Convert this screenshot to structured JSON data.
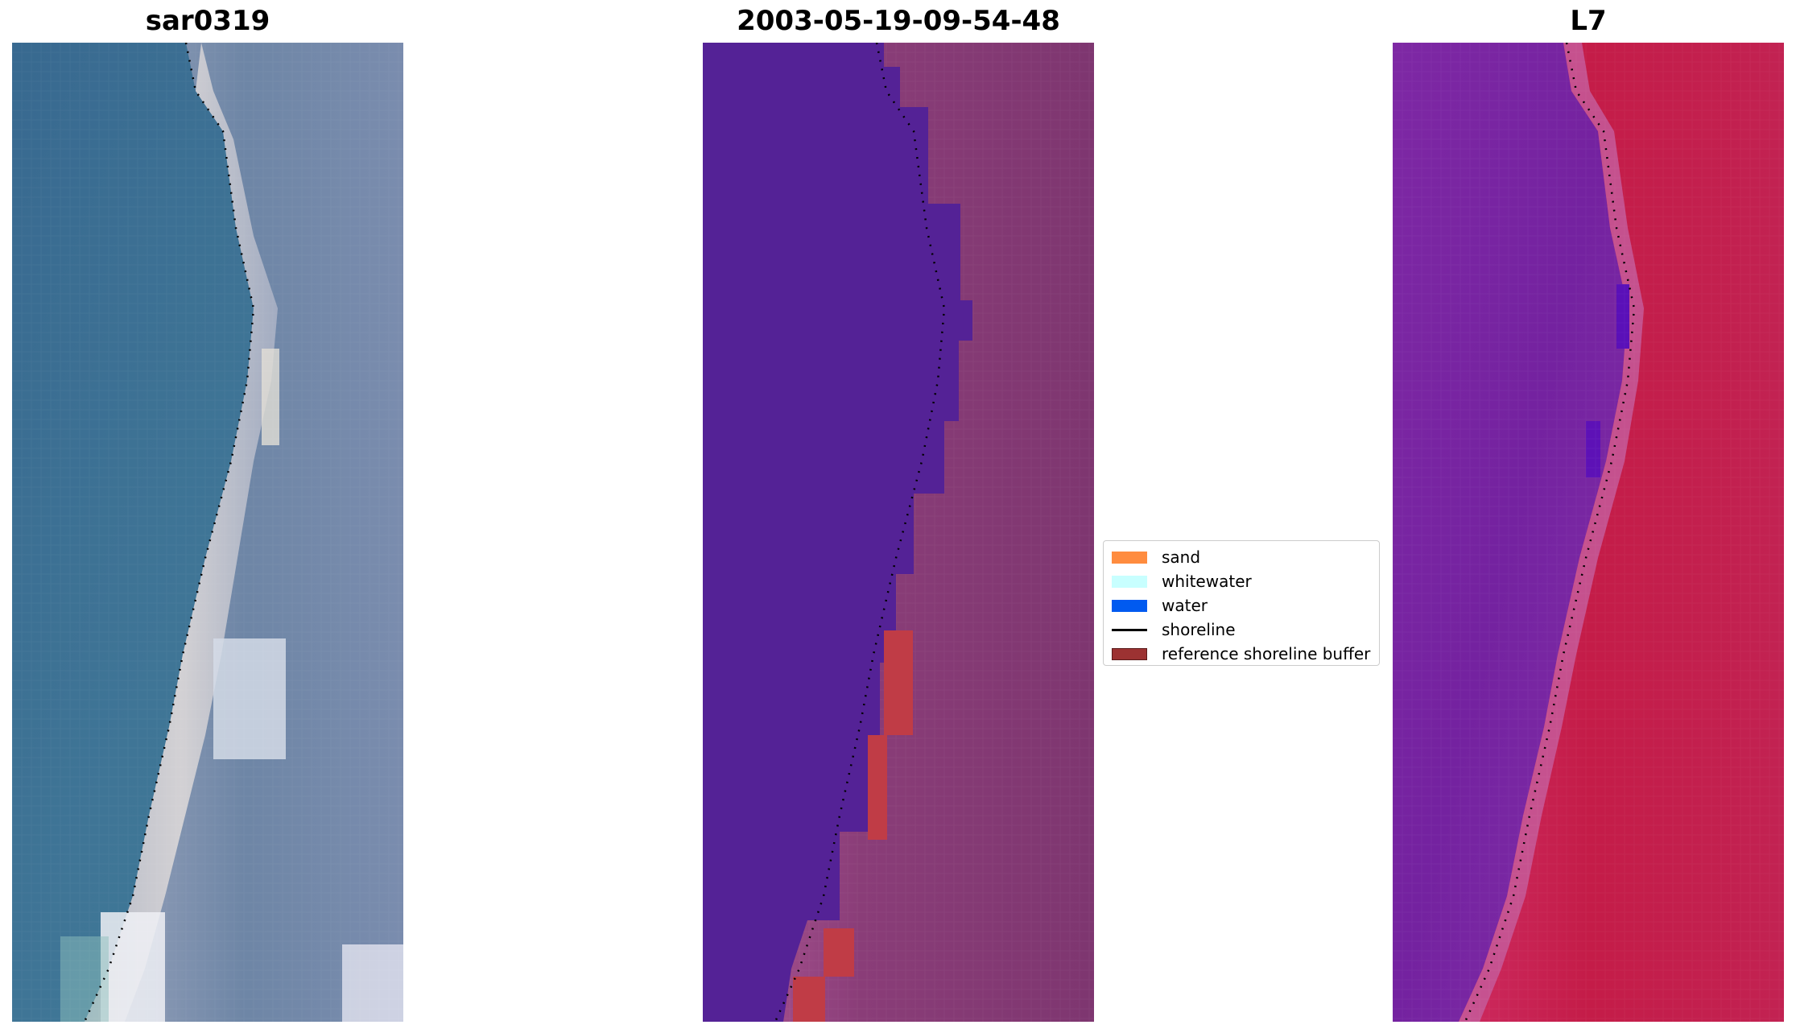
{
  "panels": [
    {
      "title": "sar0319"
    },
    {
      "title": "2003-05-19-09-54-48"
    },
    {
      "title": "L7"
    }
  ],
  "legend": {
    "items": [
      {
        "label": "sand",
        "kind": "patch",
        "color": "#ff8c3f"
      },
      {
        "label": "whitewater",
        "kind": "patch",
        "color": "#c8ffff"
      },
      {
        "label": "water",
        "kind": "patch",
        "color": "#005af0"
      },
      {
        "label": "shoreline",
        "kind": "line",
        "color": "#000000"
      },
      {
        "label": "reference shoreline buffer",
        "kind": "patch",
        "color": "#9c3232"
      }
    ]
  },
  "colors": {
    "rgb_water": "#3f6f97",
    "rgb_sand": "#c8c4c8",
    "classified_water": "#542296",
    "classified_land": "#82386e",
    "buffer_red": "#c03c46",
    "swir_water": "#7a24a0",
    "swir_land": "#c21e4c"
  }
}
